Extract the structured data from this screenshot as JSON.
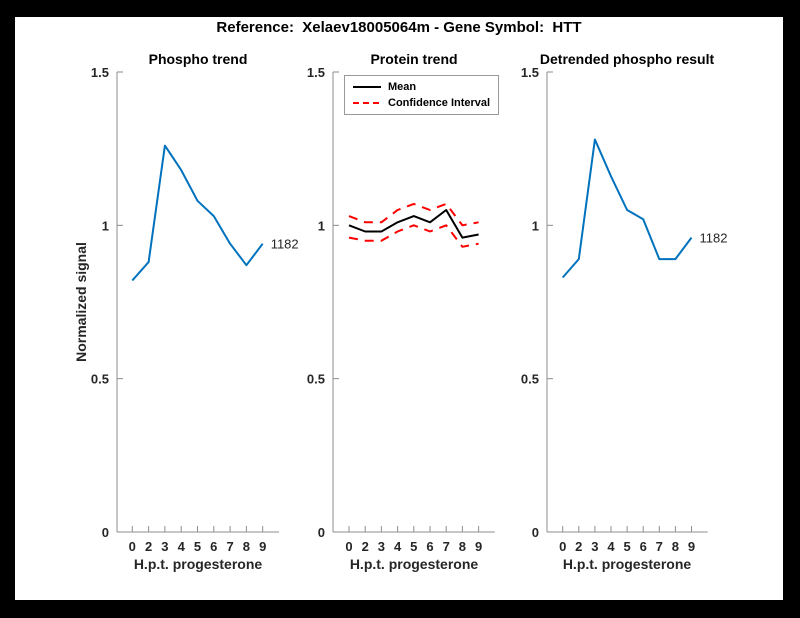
{
  "figure": {
    "title": "Reference:  Xelaev18005064m - Gene Symbol:  HTT",
    "frame_color": "#000000",
    "canvas_color": "#ffffff"
  },
  "colors": {
    "blue": "#0072BD",
    "red": "#FF0000",
    "black": "#000000",
    "axis": "#8c8c8c",
    "tick_text": "#262626"
  },
  "chart_data": [
    {
      "type": "line",
      "title": "Phospho trend",
      "xlabel": "H.p.t. progesterone",
      "ylabel": "Normalized signal",
      "x_tick_labels": [
        "0",
        "2",
        "3",
        "4",
        "5",
        "6",
        "7",
        "8",
        "9"
      ],
      "y_ticks": [
        {
          "value": 0,
          "label": "0"
        },
        {
          "value": 0.5,
          "label": "0.5"
        },
        {
          "value": 1,
          "label": "1"
        },
        {
          "value": 1.5,
          "label": "1.5"
        }
      ],
      "ylim": [
        0,
        1.5
      ],
      "grid": false,
      "series": [
        {
          "name": "phospho",
          "color_key": "blue",
          "style": "solid",
          "values": [
            0.82,
            0.88,
            1.26,
            1.18,
            1.08,
            1.03,
            0.94,
            0.87,
            0.94
          ],
          "end_label": "1182"
        }
      ]
    },
    {
      "type": "line",
      "title": "Protein trend",
      "xlabel": "H.p.t. progesterone",
      "ylabel": "",
      "x_tick_labels": [
        "0",
        "2",
        "3",
        "4",
        "5",
        "6",
        "7",
        "8",
        "9"
      ],
      "y_ticks": [
        {
          "value": 0,
          "label": "0"
        },
        {
          "value": 0.5,
          "label": "0.5"
        },
        {
          "value": 1,
          "label": "1"
        },
        {
          "value": 1.5,
          "label": "1.5"
        }
      ],
      "ylim": [
        0,
        1.5
      ],
      "grid": false,
      "legend": {
        "position": "top-right",
        "entries": [
          {
            "label": "Mean",
            "style": "solid",
            "color_key": "black"
          },
          {
            "label": "Confidence Interval",
            "style": "dashed",
            "color_key": "red"
          }
        ]
      },
      "series": [
        {
          "name": "ci-upper",
          "color_key": "red",
          "style": "dashed",
          "values": [
            1.03,
            1.01,
            1.01,
            1.05,
            1.07,
            1.05,
            1.07,
            1.0,
            1.01
          ]
        },
        {
          "name": "ci-lower",
          "color_key": "red",
          "style": "dashed",
          "values": [
            0.96,
            0.95,
            0.95,
            0.98,
            1.0,
            0.98,
            1.0,
            0.93,
            0.94
          ]
        },
        {
          "name": "mean",
          "color_key": "black",
          "style": "solid",
          "values": [
            1.0,
            0.98,
            0.98,
            1.01,
            1.03,
            1.01,
            1.05,
            0.96,
            0.97
          ]
        }
      ]
    },
    {
      "type": "line",
      "title": "Detrended phospho result",
      "xlabel": "H.p.t. progesterone",
      "ylabel": "",
      "x_tick_labels": [
        "0",
        "2",
        "3",
        "4",
        "5",
        "6",
        "7",
        "8",
        "9"
      ],
      "y_ticks": [
        {
          "value": 0,
          "label": "0"
        },
        {
          "value": 0.5,
          "label": "0.5"
        },
        {
          "value": 1,
          "label": "1"
        },
        {
          "value": 1.5,
          "label": "1.5"
        }
      ],
      "ylim": [
        0,
        1.5
      ],
      "grid": false,
      "series": [
        {
          "name": "detrended",
          "color_key": "blue",
          "style": "solid",
          "values": [
            0.83,
            0.89,
            1.28,
            1.16,
            1.05,
            1.02,
            0.89,
            0.89,
            0.96
          ],
          "end_label": "1182"
        }
      ]
    }
  ]
}
